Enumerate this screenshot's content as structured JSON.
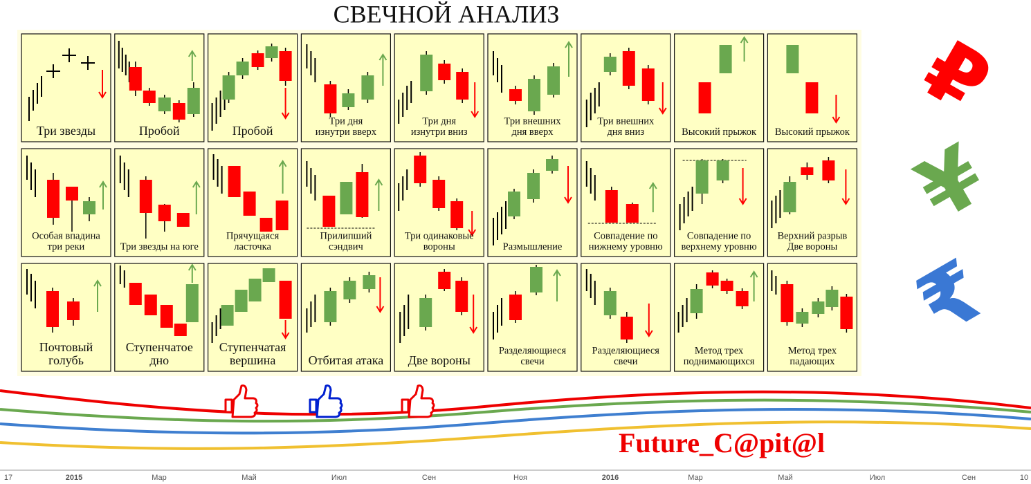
{
  "header": {
    "title": "СВЕЧНОЙ АНАЛИЗ"
  },
  "patterns": [
    {
      "label": [
        "Три звезды"
      ]
    },
    {
      "label": [
        "Пробой"
      ]
    },
    {
      "label": [
        "Пробой"
      ]
    },
    {
      "label": [
        "Три дня",
        "изнутри вверх"
      ]
    },
    {
      "label": [
        "Три дня",
        "изнутри вниз"
      ]
    },
    {
      "label": [
        "Три внешних",
        "дня вверх"
      ]
    },
    {
      "label": [
        "Три внешних",
        "дня вниз"
      ]
    },
    {
      "label": [
        "Высокий прыжок"
      ]
    },
    {
      "label": [
        "Высокий прыжок"
      ]
    },
    {
      "label": [
        "Особая впадина",
        "три реки"
      ]
    },
    {
      "label": [
        "Три звезды на юге"
      ]
    },
    {
      "label": [
        "Прячущаяся",
        "ласточка"
      ]
    },
    {
      "label": [
        "Прилипший",
        "сэндвич"
      ]
    },
    {
      "label": [
        "Три одинаковые",
        "вороны"
      ]
    },
    {
      "label": [
        "Размышление"
      ]
    },
    {
      "label": [
        "Совпадение по",
        "нижнему уровню"
      ]
    },
    {
      "label": [
        "Совпадение по",
        "верхнему уровню"
      ]
    },
    {
      "label": [
        "Верхний разрыв",
        "Две вороны"
      ]
    },
    {
      "label": [
        "Почтовый",
        "голубь"
      ]
    },
    {
      "label": [
        "Ступенчатое",
        "дно"
      ]
    },
    {
      "label": [
        "Ступенчатая",
        "вершина"
      ]
    },
    {
      "label": [
        "Отбитая атака"
      ]
    },
    {
      "label": [
        "Две вороны"
      ]
    },
    {
      "label": [
        "Разделяющиеся",
        "свечи"
      ]
    },
    {
      "label": [
        "Разделяющиеся",
        "свечи"
      ]
    },
    {
      "label": [
        "Метод трех",
        "поднимающихся"
      ]
    },
    {
      "label": [
        "Метод трех",
        "падающих"
      ]
    }
  ],
  "currency_icons": [
    "₽",
    "¥",
    "₹"
  ],
  "brand": "Future_C@pit@l",
  "time_axis": [
    "17",
    "2015",
    "Мар",
    "Май",
    "Июл",
    "Сен",
    "Ноя",
    "2016",
    "Мар",
    "Май",
    "Июл",
    "Сен",
    "10"
  ]
}
